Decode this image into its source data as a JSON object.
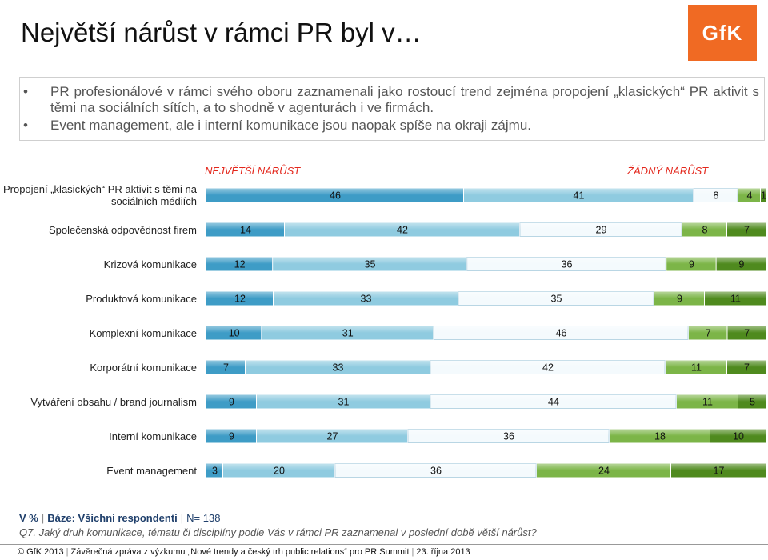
{
  "title": "Největší nárůst v rámci PR byl v…",
  "logo_text": "GfK",
  "bullets": [
    "PR profesionálové v rámci svého oboru zaznamenali jako rostoucí trend zejména propojení „klasických“ PR aktivit s těmi na sociálních sítích, a to shodně v agenturách i ve firmách.",
    "Event management, ale i interní komunikace jsou naopak spíše na okraji zájmu."
  ],
  "chart_data": {
    "type": "bar",
    "orientation": "horizontal",
    "stacked": true,
    "scale_label_left": "NEJVĚTŠÍ NÁRŮST",
    "scale_label_right": "ŽÁDNÝ NÁRŮST",
    "categories": [
      "Propojení „klasických“ PR aktivit s těmi na sociálních médiích",
      "Společenská odpovědnost firem",
      "Krizová komunikace",
      "Produktová komunikace",
      "Komplexní komunikace",
      "Korporátní komunikace",
      "Vytváření obsahu / brand journalism",
      "Interní komunikace",
      "Event management"
    ],
    "segments": [
      [
        46,
        41,
        8,
        4,
        1
      ],
      [
        14,
        42,
        29,
        8,
        7
      ],
      [
        12,
        35,
        36,
        9,
        9
      ],
      [
        12,
        33,
        35,
        9,
        11
      ],
      [
        10,
        31,
        46,
        7,
        7
      ],
      [
        7,
        33,
        42,
        11,
        7
      ],
      [
        9,
        31,
        44,
        11,
        5
      ],
      [
        9,
        27,
        36,
        18,
        10
      ],
      [
        3,
        20,
        36,
        24,
        17
      ]
    ],
    "segment_colors": [
      "#3e9cc6",
      "#8fcbe0",
      "#f4fafd",
      "#7cb548",
      "#4f8a1e"
    ],
    "grid": false
  },
  "footer": {
    "unit": "V %",
    "base": "Báze: Všichni respondenti",
    "n": "N= 138",
    "question": "Q7. Jaký druh komunikace, tématu či disciplíny podle Vás v rámci PR zaznamenal v poslední době větší nárůst?",
    "copyright": "© GfK 2013",
    "report": "Závěrečná zpráva z výzkumu „Nové trendy a český trh public relations“ pro PR Summit",
    "date": "23. října 2013"
  }
}
